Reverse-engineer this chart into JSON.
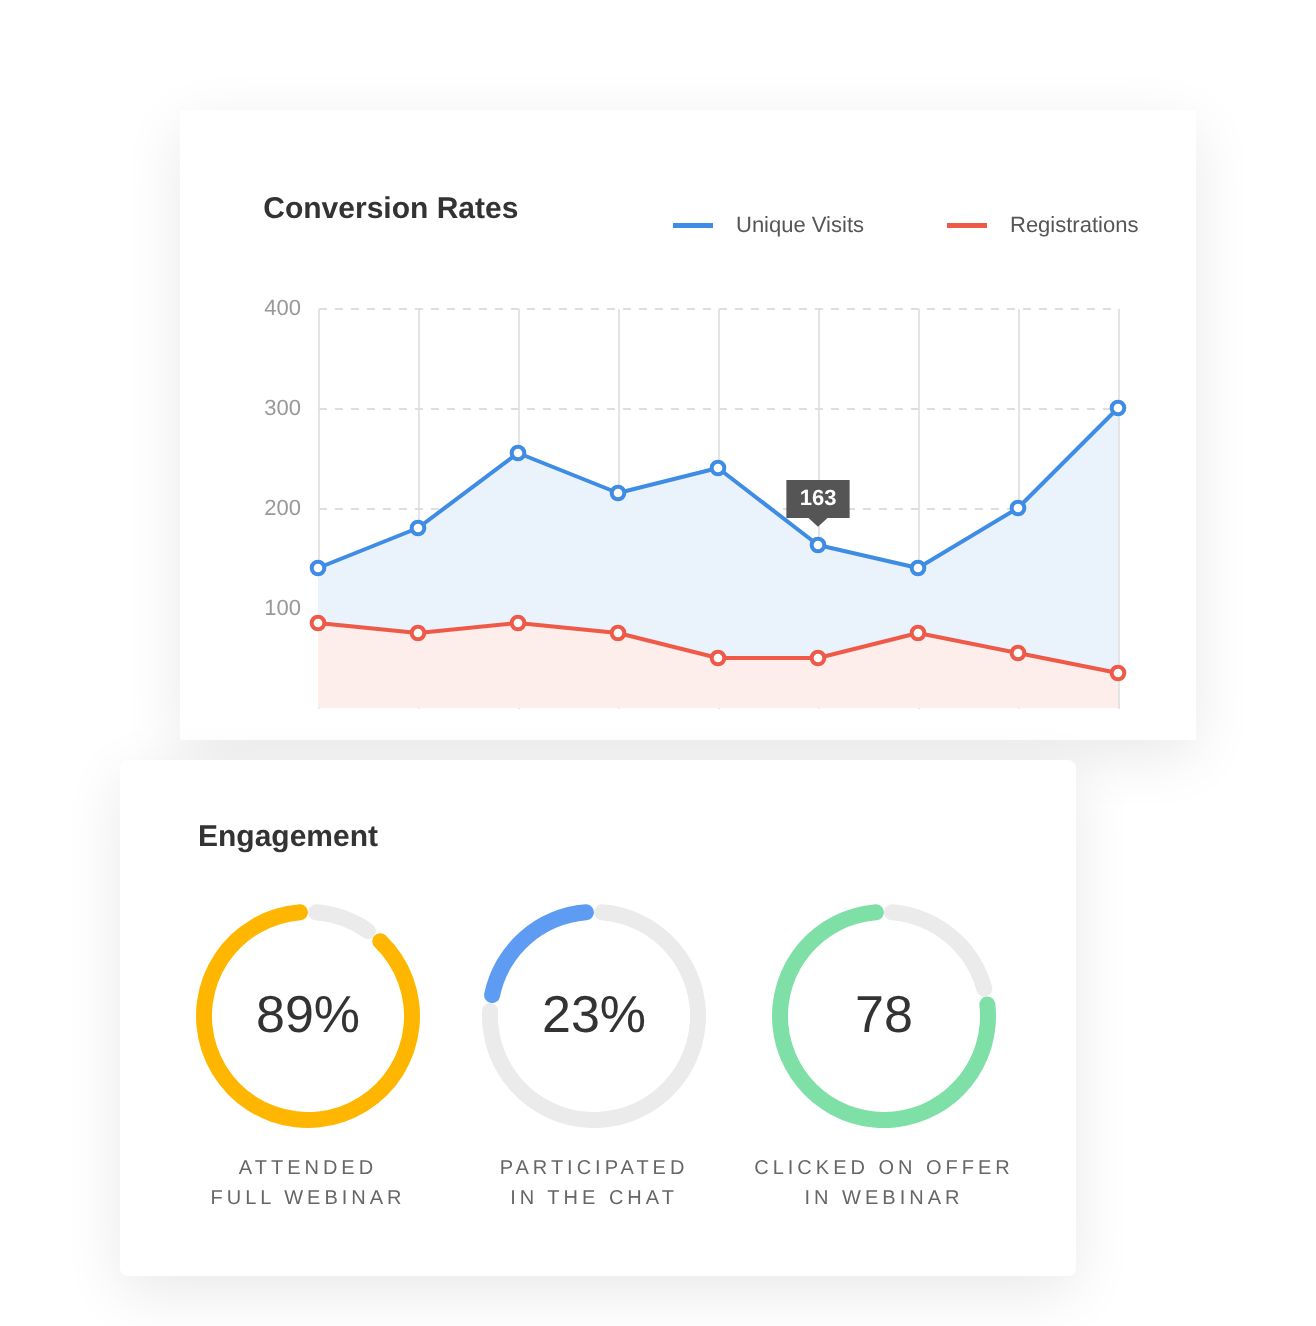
{
  "chart_data": [
    {
      "type": "area",
      "title": "Conversion Rates",
      "categories": [
        null,
        null,
        null,
        null,
        null,
        null,
        null,
        null,
        null
      ],
      "series": [
        {
          "name": "Unique Visits",
          "color": "#3f8ce5",
          "values": [
            140,
            180,
            255,
            215,
            240,
            163,
            140,
            200,
            300
          ],
          "value_labels": [
            null,
            null,
            null,
            null,
            null,
            "163",
            null,
            null,
            null
          ]
        },
        {
          "name": "Registrations",
          "color": "#ef5a48",
          "values": [
            85,
            75,
            85,
            75,
            50,
            50,
            75,
            55,
            35
          ]
        }
      ],
      "ylim": [
        0,
        400
      ],
      "yticks": [
        100,
        200,
        300,
        400
      ],
      "grid": true,
      "legend": "top right",
      "marker": "circle",
      "tick_labels": "y"
    },
    {
      "type": "other",
      "title": "Engagement"
    },
    {
      "type": "donut",
      "title": "ATTENDED FULL WEBINAR",
      "categories": [
        null,
        null
      ],
      "values": [
        89,
        11
      ],
      "colors": [
        "#ffb600",
        "#ebebeb"
      ],
      "annotations": [
        "89%"
      ]
    },
    {
      "type": "donut",
      "title": "PARTICIPATED IN THE CHAT",
      "categories": [
        null,
        null
      ],
      "values": [
        23,
        77
      ],
      "colors": [
        "#5d9cf2",
        "#ebebeb"
      ],
      "annotations": [
        "23%"
      ]
    },
    {
      "type": "donut",
      "title": "CLICKED ON OFFER IN WEBINAR",
      "categories": [
        null,
        null
      ],
      "values": [
        78,
        22
      ],
      "colors": [
        "#7ee0a6",
        "#ebebeb"
      ],
      "annotations": [
        "78"
      ]
    }
  ]
}
